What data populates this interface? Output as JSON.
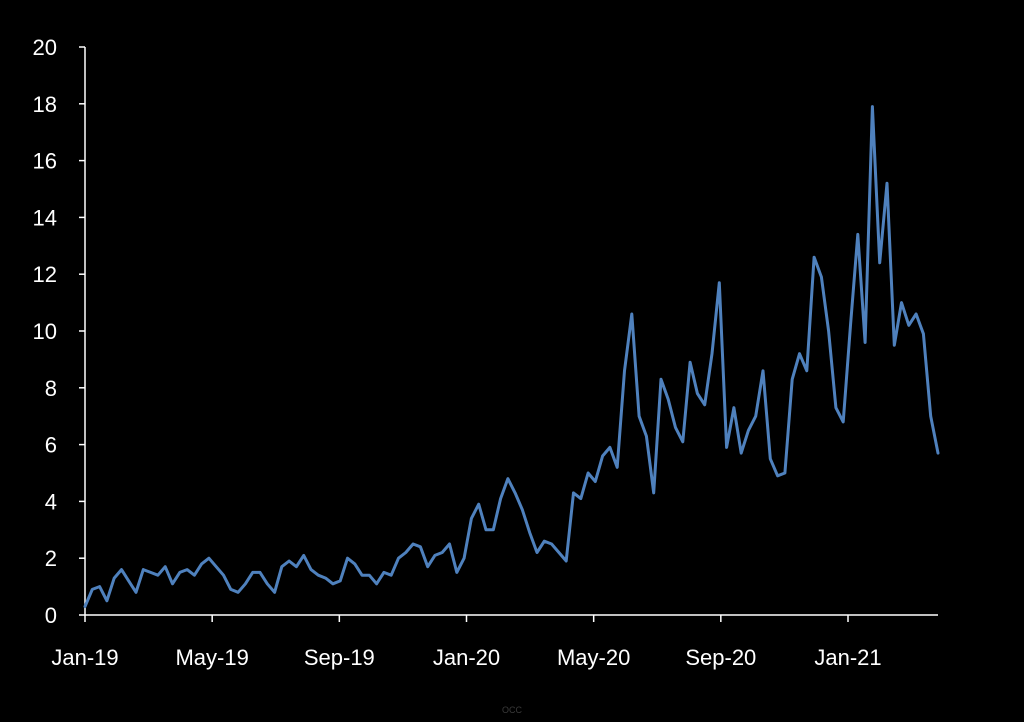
{
  "chart_data": {
    "type": "line",
    "title": "",
    "xlabel": "",
    "ylabel": "",
    "ylim": [
      0,
      20
    ],
    "yticks": [
      "0",
      "2",
      "4",
      "6",
      "8",
      "10",
      "12",
      "14",
      "16",
      "18",
      "20"
    ],
    "xticks": [
      "Jan-19",
      "May-19",
      "Sep-19",
      "Jan-20",
      "May-20",
      "Sep-20",
      "Jan-21"
    ],
    "x_start": "2019-01-01",
    "x_frequency": "weekly",
    "grid": false,
    "legend": "none",
    "colors": {
      "background": "#000000",
      "axis": "#ffffff",
      "line": "#4f81bd",
      "text": "#ffffff"
    },
    "series": [
      {
        "values": [
          0.3,
          0.9,
          1.0,
          0.5,
          1.3,
          1.6,
          1.2,
          0.8,
          1.6,
          1.5,
          1.4,
          1.7,
          1.1,
          1.5,
          1.6,
          1.4,
          1.8,
          2.0,
          1.7,
          1.4,
          0.9,
          0.8,
          1.1,
          1.5,
          1.5,
          1.1,
          0.8,
          1.7,
          1.9,
          1.7,
          2.1,
          1.6,
          1.4,
          1.3,
          1.1,
          1.2,
          2.0,
          1.8,
          1.4,
          1.4,
          1.1,
          1.5,
          1.4,
          2.0,
          2.2,
          2.5,
          2.4,
          1.7,
          2.1,
          2.2,
          2.5,
          1.5,
          2.0,
          3.4,
          3.9,
          3.0,
          3.0,
          4.1,
          4.8,
          4.3,
          3.7,
          2.9,
          2.2,
          2.6,
          2.5,
          2.2,
          1.9,
          4.3,
          4.1,
          5.0,
          4.7,
          5.6,
          5.9,
          5.2,
          8.6,
          10.6,
          7.0,
          6.3,
          4.3,
          8.3,
          7.6,
          6.6,
          6.1,
          8.9,
          7.8,
          7.4,
          9.2,
          11.7,
          5.9,
          7.3,
          5.7,
          6.5,
          7.0,
          8.6,
          5.5,
          4.9,
          5.0,
          8.3,
          9.2,
          8.6,
          12.6,
          11.9,
          10.0,
          7.3,
          6.8,
          10.2,
          13.4,
          9.6,
          17.9,
          12.4,
          15.2,
          9.5,
          11.0,
          10.2,
          10.6,
          9.9,
          7.0,
          5.7
        ]
      }
    ]
  },
  "source": "OCC"
}
